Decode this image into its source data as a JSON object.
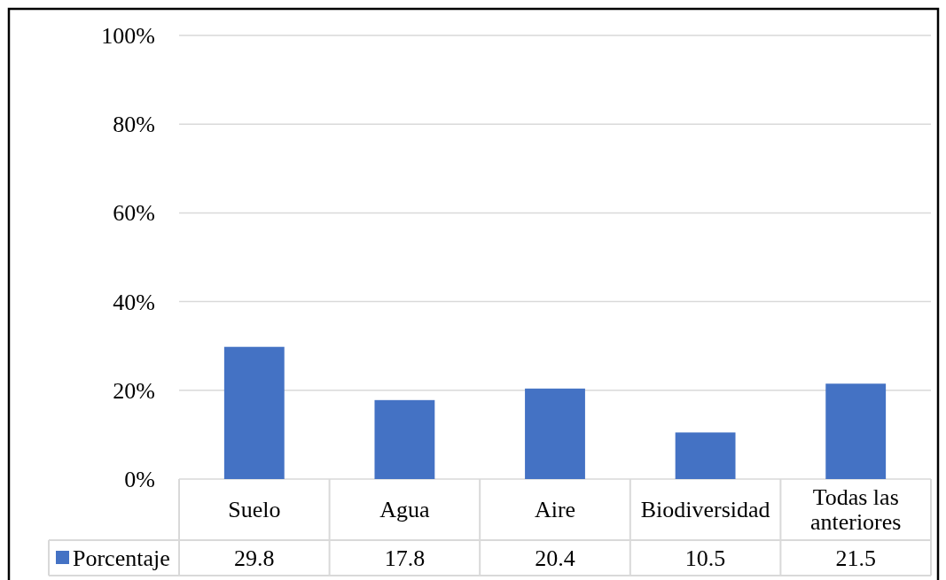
{
  "chart_data": {
    "type": "bar",
    "categories": [
      "Suelo",
      "Agua",
      "Aire",
      "Biodiversidad",
      "Todas las anteriores"
    ],
    "series": [
      {
        "name": "Porcentaje",
        "color": "#4472c4",
        "values": [
          29.8,
          17.8,
          20.4,
          10.5,
          21.5
        ]
      }
    ],
    "ylim": [
      0,
      100
    ],
    "yticks": [
      {
        "value": 0,
        "label": "0%"
      },
      {
        "value": 20,
        "label": "20%"
      },
      {
        "value": 40,
        "label": "40%"
      },
      {
        "value": 60,
        "label": "60%"
      },
      {
        "value": 80,
        "label": "80%"
      },
      {
        "value": 100,
        "label": "100%"
      }
    ],
    "grid": "y",
    "legend": "bottom left",
    "data_labels": true
  }
}
